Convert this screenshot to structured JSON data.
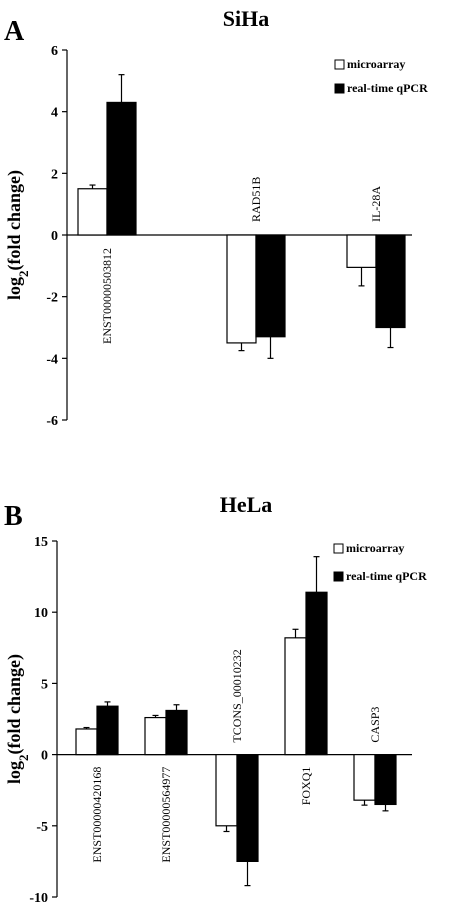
{
  "chart_data": [
    {
      "type": "bar",
      "panel": "A",
      "title": "SiHa",
      "ylabel": "log2(fold change)",
      "ylim": [
        -6,
        6
      ],
      "yticks": [
        6,
        4,
        2,
        0,
        -2,
        -4,
        -6
      ],
      "categories": [
        "ENST00000503812",
        "RAD51B",
        "IL-28A"
      ],
      "series": [
        {
          "name": "microarray",
          "color": "#ffffff",
          "values": [
            1.5,
            -3.5,
            -1.05
          ],
          "errors": [
            0.12,
            0.25,
            0.6
          ]
        },
        {
          "name": "real-time qPCR",
          "color": "#000000",
          "values": [
            4.3,
            -3.3,
            -3.0
          ],
          "errors": [
            0.9,
            0.7,
            0.65
          ]
        }
      ],
      "legend": "top-right",
      "grid": false
    },
    {
      "type": "bar",
      "panel": "B",
      "title": "HeLa",
      "ylabel": "log2(fold change)",
      "ylim": [
        -10,
        15
      ],
      "yticks": [
        15,
        10,
        5,
        0,
        -5,
        -10
      ],
      "categories": [
        "ENST00000420168",
        "ENST00000564977",
        "TCONS_00010232",
        "FOXQ1",
        "CASP3"
      ],
      "series": [
        {
          "name": "microarray",
          "color": "#ffffff",
          "values": [
            1.8,
            2.6,
            -5.0,
            8.2,
            -3.2
          ],
          "errors": [
            0.1,
            0.15,
            0.4,
            0.6,
            0.35
          ]
        },
        {
          "name": "real-time qPCR",
          "color": "#000000",
          "values": [
            3.4,
            3.1,
            -7.5,
            11.4,
            -3.5
          ],
          "errors": [
            0.3,
            0.4,
            1.7,
            2.5,
            0.45
          ]
        }
      ],
      "legend": "top-right",
      "grid": false
    }
  ]
}
